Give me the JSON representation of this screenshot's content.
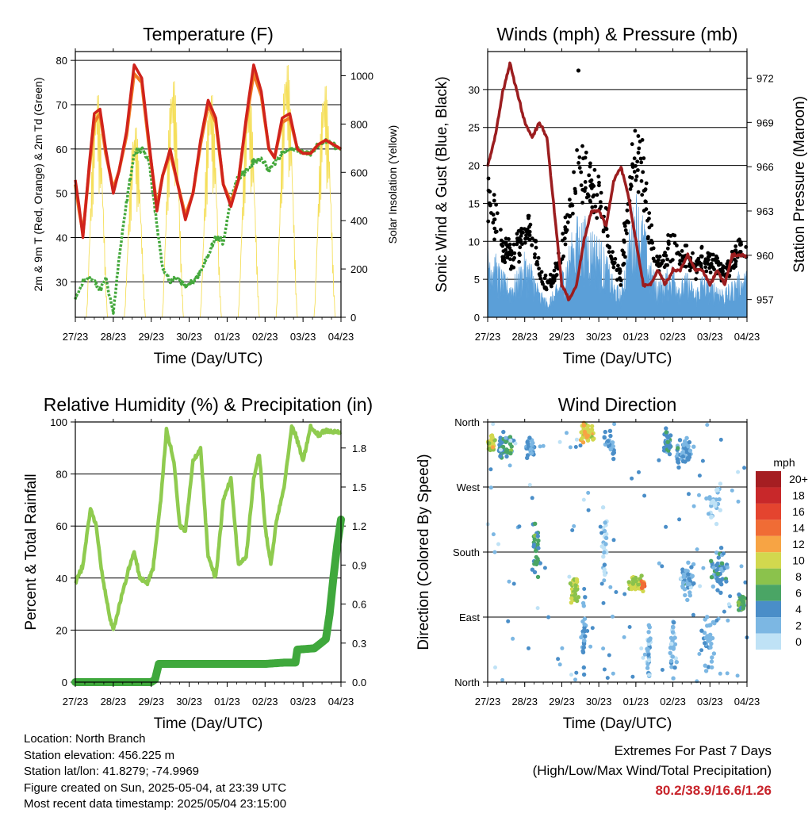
{
  "common": {
    "x_ticks": [
      "27/23",
      "28/23",
      "29/23",
      "30/23",
      "01/23",
      "02/23",
      "03/23",
      "04/23"
    ],
    "x_label": "Time (Day/UTC)"
  },
  "chart_data": [
    {
      "id": "temp",
      "type": "line",
      "title": "Temperature (F)",
      "xlabel": "Time (Day/UTC)",
      "ylabel": "2m & 9m T (Red, Orange) & 2m Td (Green)",
      "y2label": "Solar Insolation (Yellow)",
      "ylim": [
        22,
        82
      ],
      "y_ticks": [
        30,
        40,
        50,
        60,
        70,
        80
      ],
      "y2lim": [
        0,
        1100
      ],
      "y2_ticks": [
        0,
        200,
        400,
        600,
        800,
        1000
      ],
      "x": [
        0,
        0.1,
        0.2,
        0.35,
        0.5,
        0.65,
        0.8,
        1.0,
        1.15,
        1.35,
        1.55,
        1.75,
        1.95,
        2.15,
        2.3,
        2.5,
        2.7,
        2.9,
        3.1,
        3.3,
        3.5,
        3.7,
        3.9,
        4.1,
        4.3,
        4.5,
        4.7,
        4.9,
        5.1,
        5.25,
        5.45,
        5.65,
        5.85,
        6.0,
        6.2,
        6.4,
        6.6,
        6.8,
        7.0
      ],
      "series": [
        {
          "name": "2m T",
          "color": "#d0231c",
          "values": [
            53,
            47,
            40,
            55,
            68,
            69,
            60,
            50,
            55,
            64,
            79,
            76,
            61,
            46,
            54,
            60,
            52,
            44,
            50,
            62,
            71,
            67,
            52,
            47,
            53,
            67,
            79,
            73,
            60,
            58,
            67,
            68,
            60,
            59,
            59,
            61,
            62,
            61,
            60
          ]
        },
        {
          "name": "9m T",
          "color": "#f07a25",
          "values": [
            52,
            46,
            41,
            54,
            66,
            68,
            59,
            51,
            55,
            63,
            77,
            75,
            60,
            47,
            54,
            59,
            52,
            45,
            50,
            61,
            70,
            66,
            52,
            48,
            53,
            66,
            77,
            72,
            60,
            58,
            66,
            67,
            60,
            59,
            59,
            61,
            62,
            61,
            60
          ]
        },
        {
          "name": "2m Td",
          "color": "#44a83c",
          "values": [
            26,
            28,
            30,
            31,
            30,
            28,
            31,
            23,
            35,
            48,
            59,
            60,
            57,
            43,
            33,
            30,
            31,
            29,
            30,
            32,
            36,
            40,
            39,
            49,
            54,
            55,
            57,
            58,
            55,
            57,
            59,
            60,
            60,
            59,
            59,
            61,
            62,
            61,
            60
          ]
        }
      ],
      "solar": {
        "color": "#f5df5b",
        "peaks": [
          {
            "day": 0.57,
            "value": 960
          },
          {
            "day": 1.57,
            "value": 820
          },
          {
            "day": 2.57,
            "value": 1020
          },
          {
            "day": 3.57,
            "value": 960
          },
          {
            "day": 4.57,
            "value": 970
          },
          {
            "day": 5.57,
            "value": 1090
          },
          {
            "day": 6.57,
            "value": 1000
          }
        ]
      }
    },
    {
      "id": "wind",
      "type": "line",
      "title": "Winds (mph) & Pressure (mb)",
      "xlabel": "Time (Day/UTC)",
      "ylabel": "Sonic Wind & Gust (Blue, Black)",
      "y2label": "Station Pressure (Maroon)",
      "ylim": [
        0,
        35
      ],
      "y_ticks": [
        0,
        5,
        10,
        15,
        20,
        25,
        30
      ],
      "y2lim": [
        955.8,
        973.8
      ],
      "y2_ticks": [
        957,
        960,
        963,
        966,
        969,
        972
      ],
      "x": [
        0,
        0.2,
        0.4,
        0.6,
        0.8,
        1.0,
        1.2,
        1.4,
        1.6,
        1.8,
        2.0,
        2.2,
        2.4,
        2.6,
        2.8,
        3.0,
        3.2,
        3.4,
        3.6,
        3.8,
        4.0,
        4.2,
        4.4,
        4.6,
        4.8,
        5.0,
        5.2,
        5.4,
        5.6,
        5.8,
        6.0,
        6.2,
        6.4,
        6.6,
        6.8,
        7.0
      ],
      "series": [
        {
          "name": "Wind",
          "color": "#5b9fd8",
          "values": [
            9,
            7,
            5,
            4,
            5,
            7,
            6,
            3,
            2,
            3,
            5,
            8,
            11,
            11,
            10,
            9,
            7,
            4,
            3,
            9,
            14,
            11,
            6,
            4,
            5,
            6,
            4,
            5,
            3,
            5,
            4,
            4,
            3,
            4,
            5,
            5
          ]
        },
        {
          "name": "Gust",
          "color": "#000000",
          "values": [
            16,
            13,
            9,
            8,
            9,
            12,
            11,
            6,
            4,
            5,
            9,
            14,
            18,
            18,
            17,
            15,
            12,
            7,
            5,
            15,
            22,
            18,
            10,
            7,
            8,
            10,
            7,
            8,
            6,
            8,
            7,
            7,
            6,
            7,
            9,
            9
          ]
        },
        {
          "name": "Pressure",
          "color": "#9b1d1f",
          "values": [
            966,
            968,
            971,
            973,
            971,
            969,
            968,
            969,
            968,
            963,
            958,
            957,
            958,
            961,
            963,
            963,
            962,
            965,
            966,
            964,
            961,
            958,
            958,
            959,
            958,
            959,
            959,
            960,
            959,
            959,
            958,
            959,
            958,
            960,
            960,
            960
          ]
        }
      ],
      "outlier": {
        "day": 2.45,
        "value": 32.5
      }
    },
    {
      "id": "rh",
      "type": "line",
      "title": "Relative Humidity (%) & Precipitation (in)",
      "xlabel": "Time (Day/UTC)",
      "ylabel": "Percent & Total Rainfall",
      "ylim": [
        0,
        100
      ],
      "y_ticks": [
        0,
        20,
        40,
        60,
        80,
        100
      ],
      "y2lim": [
        0,
        2.0
      ],
      "y2_ticks": [
        "0.0",
        "0.3",
        "0.6",
        "0.9",
        "1.2",
        "1.5",
        "1.8"
      ],
      "series": [
        {
          "name": "RH",
          "color": "#8fcb4f",
          "x": [
            0,
            0.2,
            0.4,
            0.55,
            0.7,
            0.9,
            1.0,
            1.2,
            1.4,
            1.55,
            1.7,
            1.9,
            2.05,
            2.25,
            2.4,
            2.6,
            2.75,
            2.9,
            3.1,
            3.3,
            3.5,
            3.7,
            3.9,
            4.1,
            4.3,
            4.5,
            4.7,
            4.85,
            5.0,
            5.15,
            5.3,
            5.5,
            5.7,
            5.8,
            6.0,
            6.2,
            6.4,
            6.6,
            6.8,
            7.0
          ],
          "values": [
            38,
            45,
            67,
            60,
            42,
            25,
            20,
            32,
            43,
            50,
            40,
            38,
            44,
            70,
            97,
            85,
            60,
            58,
            85,
            90,
            48,
            40,
            70,
            78,
            45,
            48,
            78,
            88,
            60,
            45,
            62,
            75,
            98,
            95,
            85,
            98,
            95,
            97,
            96,
            96
          ]
        },
        {
          "name": "Precipitation",
          "color": "#3fa83c",
          "unit": "in",
          "x": [
            0,
            0.5,
            1.0,
            1.5,
            2.0,
            2.1,
            2.2,
            2.3,
            3.0,
            3.5,
            4.0,
            4.5,
            5.0,
            5.5,
            5.8,
            5.85,
            6.3,
            6.6,
            6.7,
            6.8,
            6.9,
            7.0
          ],
          "values": [
            0,
            0,
            0,
            0,
            0,
            0.02,
            0.14,
            0.14,
            0.14,
            0.14,
            0.14,
            0.14,
            0.14,
            0.15,
            0.15,
            0.25,
            0.26,
            0.33,
            0.52,
            0.8,
            1.05,
            1.25
          ]
        }
      ]
    },
    {
      "id": "dir",
      "type": "scatter",
      "title": "Wind Direction",
      "xlabel": "Time (Day/UTC)",
      "ylabel": "Direction (Colored By Speed)",
      "y_ticks": [
        "North",
        "East",
        "South",
        "West",
        "North"
      ],
      "ylim": [
        0,
        360
      ],
      "colorbar": {
        "unit": "mph",
        "labels": [
          "20+",
          "18",
          "16",
          "14",
          "12",
          "10",
          "8",
          "6",
          "4",
          "2",
          "0"
        ],
        "colors": [
          "#a51e22",
          "#c8282a",
          "#e4442f",
          "#f06c35",
          "#f7a444",
          "#d2d84e",
          "#8bc24c",
          "#4aa565",
          "#4a8ec8",
          "#7cb7e3",
          "#bfe2f6"
        ]
      },
      "clusters": [
        {
          "day": 0.1,
          "dir": 330,
          "spread_t": 0.12,
          "spread_d": 15,
          "speed": 10,
          "n": 35
        },
        {
          "day": 0.5,
          "dir": 325,
          "spread_t": 0.35,
          "spread_d": 25,
          "speed": 5,
          "n": 45
        },
        {
          "day": 1.15,
          "dir": 325,
          "spread_t": 0.2,
          "spread_d": 18,
          "speed": 3,
          "n": 40
        },
        {
          "day": 1.3,
          "dir": 180,
          "spread_t": 0.15,
          "spread_d": 60,
          "speed": 5,
          "n": 30
        },
        {
          "day": 2.7,
          "dir": 345,
          "spread_t": 0.25,
          "spread_d": 18,
          "speed": 10,
          "n": 60
        },
        {
          "day": 2.35,
          "dir": 130,
          "spread_t": 0.15,
          "spread_d": 25,
          "speed": 9,
          "n": 35
        },
        {
          "day": 2.6,
          "dir": 60,
          "spread_t": 0.1,
          "spread_d": 70,
          "speed": 3,
          "n": 25
        },
        {
          "day": 3.3,
          "dir": 330,
          "spread_t": 0.2,
          "spread_d": 30,
          "speed": 3,
          "n": 25
        },
        {
          "day": 3.15,
          "dir": 200,
          "spread_t": 0.1,
          "spread_d": 90,
          "speed": 1,
          "n": 25
        },
        {
          "day": 4.0,
          "dir": 135,
          "spread_t": 0.25,
          "spread_d": 15,
          "speed": 9,
          "n": 60
        },
        {
          "day": 4.2,
          "dir": 135,
          "spread_t": 0.08,
          "spread_d": 8,
          "speed": 14,
          "n": 18
        },
        {
          "day": 4.35,
          "dir": 55,
          "spread_t": 0.08,
          "spread_d": 70,
          "speed": 2,
          "n": 30
        },
        {
          "day": 4.85,
          "dir": 330,
          "spread_t": 0.15,
          "spread_d": 25,
          "speed": 4,
          "n": 40
        },
        {
          "day": 5.3,
          "dir": 320,
          "spread_t": 0.3,
          "spread_d": 30,
          "speed": 3,
          "n": 45
        },
        {
          "day": 5.4,
          "dir": 140,
          "spread_t": 0.3,
          "spread_d": 35,
          "speed": 3,
          "n": 45
        },
        {
          "day": 5.0,
          "dir": 50,
          "spread_t": 0.15,
          "spread_d": 60,
          "speed": 2,
          "n": 30
        },
        {
          "day": 6.1,
          "dir": 250,
          "spread_t": 0.3,
          "spread_d": 40,
          "speed": 1,
          "n": 30
        },
        {
          "day": 6.25,
          "dir": 150,
          "spread_t": 0.3,
          "spread_d": 40,
          "speed": 4,
          "n": 45
        },
        {
          "day": 6.85,
          "dir": 110,
          "spread_t": 0.15,
          "spread_d": 15,
          "speed": 6,
          "n": 40
        },
        {
          "day": 6.0,
          "dir": 50,
          "spread_t": 0.3,
          "spread_d": 60,
          "speed": 2,
          "n": 30
        }
      ]
    }
  ],
  "info": {
    "location": "Location: North Branch",
    "elevation": "Station elevation: 456.225 m",
    "latlon": "Station lat/lon: 41.8279; -74.9969",
    "created": "Figure created on Sun, 2025-05-04, at 23:39 UTC",
    "recent": "Most recent data timestamp: 2025/05/04 23:15:00"
  },
  "extremes": {
    "title": "Extremes For Past 7 Days",
    "subtitle": "(High/Low/Max Wind/Total Precipitation)",
    "values": "80.2/38.9/16.6/1.26"
  }
}
